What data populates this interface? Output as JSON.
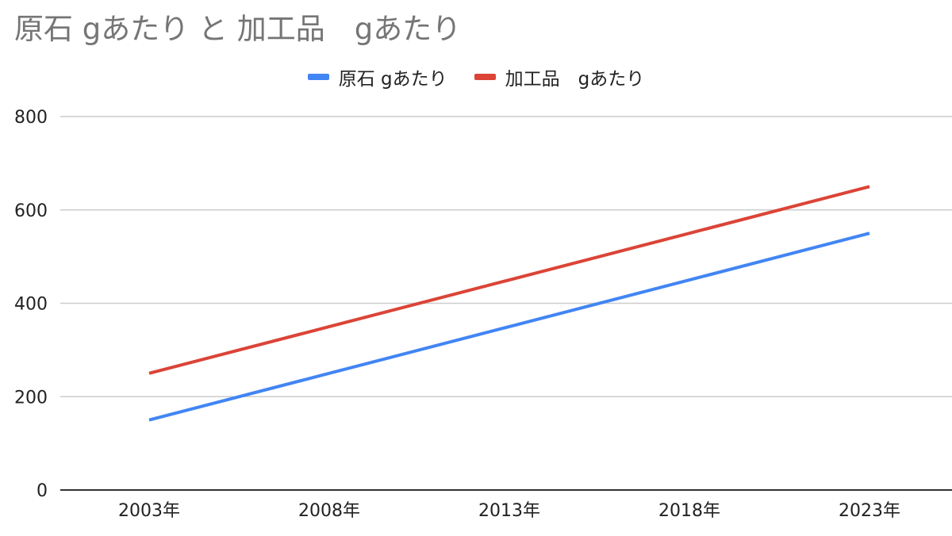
{
  "chart_data": {
    "type": "line",
    "title": "原石 gあたり と 加工品　gあたり",
    "categories": [
      "2003年",
      "2008年",
      "2013年",
      "2018年",
      "2023年"
    ],
    "series": [
      {
        "name": "原石 gあたり",
        "color": "#4285f4",
        "values": [
          150,
          250,
          350,
          450,
          550
        ]
      },
      {
        "name": "加工品　gあたり",
        "color": "#db4437",
        "values": [
          250,
          350,
          450,
          550,
          650
        ]
      }
    ],
    "ylim": [
      0,
      800
    ],
    "yticks": [
      0,
      200,
      400,
      600,
      800
    ],
    "grid": true,
    "legend": "top-center"
  }
}
